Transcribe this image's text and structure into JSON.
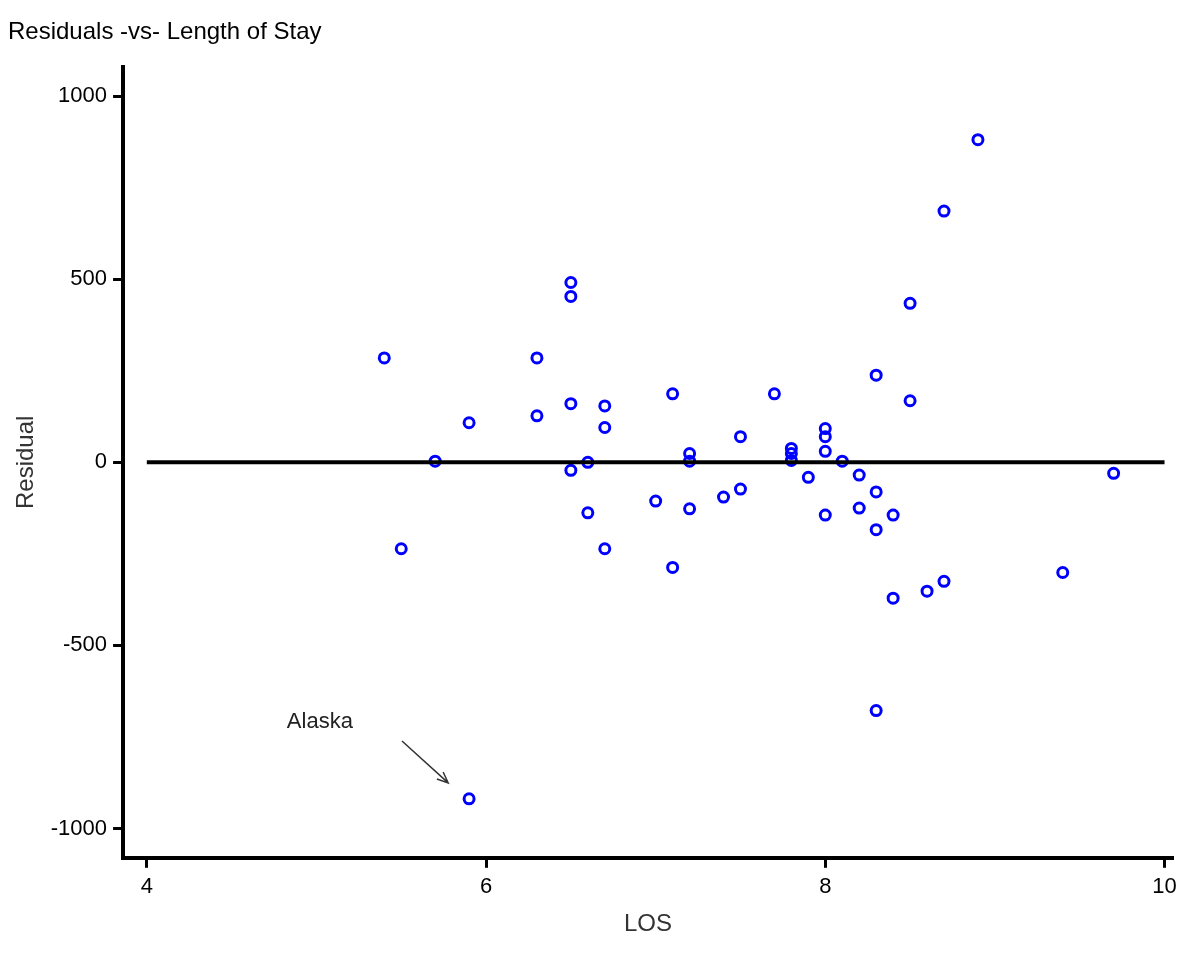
{
  "chart_data": {
    "type": "scatter",
    "title": "Residuals -vs- Length of Stay",
    "xlabel": "LOS",
    "ylabel": "Residual",
    "x": [
      5.4,
      5.5,
      5.7,
      5.9,
      5.9,
      6.3,
      6.3,
      6.5,
      6.5,
      6.5,
      6.5,
      6.6,
      6.6,
      6.7,
      6.7,
      6.7,
      7.0,
      7.1,
      7.1,
      7.2,
      7.2,
      7.2,
      7.4,
      7.5,
      7.5,
      7.7,
      7.8,
      7.8,
      7.8,
      7.9,
      8.0,
      8.0,
      8.0,
      8.0,
      8.1,
      8.2,
      8.2,
      8.3,
      8.3,
      8.3,
      8.3,
      8.4,
      8.4,
      8.5,
      8.5,
      8.6,
      8.7,
      8.7,
      8.9,
      9.4,
      9.7
    ],
    "series": [
      {
        "color": "#0000ff",
        "values": [
          285,
          -236,
          3,
          108,
          -919,
          285,
          127,
          491,
          453,
          160,
          -22,
          0,
          -138,
          154,
          95,
          -236,
          -106,
          187,
          -287,
          24,
          3,
          -127,
          -95,
          70,
          -73,
          187,
          38,
          24,
          5,
          -41,
          92,
          70,
          30,
          -144,
          3,
          -35,
          -125,
          238,
          -81,
          -184,
          -678,
          -144,
          -371,
          434,
          168,
          -352,
          -325,
          686,
          881,
          -301,
          -30
        ]
      }
    ],
    "xlim": [
      3.86,
      10.05
    ],
    "xticks": [
      4,
      6,
      8,
      10
    ],
    "ylim": [
      -1080,
      1080
    ],
    "yticks": [
      -1000,
      -500,
      0,
      500,
      1000
    ],
    "grid": false,
    "legend": false,
    "marker": "circle",
    "ref_lines": [
      {
        "axis": "y",
        "value": 0,
        "color": "#000000"
      }
    ],
    "annotations": [
      "Alaska"
    ]
  }
}
